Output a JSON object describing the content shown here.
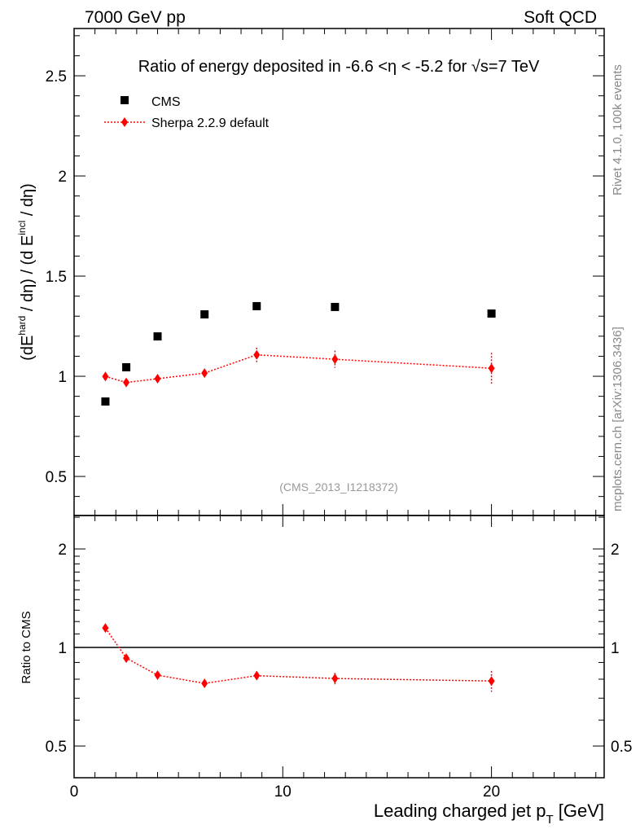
{
  "header": {
    "left": "7000 GeV pp",
    "right": "Soft QCD"
  },
  "side_labels": {
    "rivet": "Rivet 4.1.0,  100k events",
    "mcplots": "mcplots.cern.ch [arXiv:1306.3436]"
  },
  "colors": {
    "cms": "#000000",
    "sherpa": "#ff0000"
  },
  "chart_data": [
    {
      "type": "scatter",
      "title": "Ratio of energy deposited in -6.6 <η < -5.2 for √s=7 TeV",
      "ylabel_parts": {
        "open": "(dE",
        "sup1": "hard",
        "mid": " / dη) / (d E",
        "sup2": "incl",
        "close": " / dη)"
      },
      "watermark": "(CMS_2013_I1218372)",
      "xlim": [
        0,
        25.4
      ],
      "ylim": [
        0.305,
        2.736
      ],
      "yticks": [
        "0.5",
        "1",
        "1.5",
        "2",
        "2.5"
      ],
      "legend_placement": "top-left",
      "series": [
        {
          "name": "CMS",
          "marker": "square",
          "x": [
            1.5,
            2.5,
            4,
            6.25,
            8.75,
            12.5,
            20
          ],
          "y": [
            0.874,
            1.045,
            1.199,
            1.309,
            1.35,
            1.346,
            1.313
          ],
          "err": [
            0,
            0,
            0,
            0,
            0,
            0,
            0
          ]
        },
        {
          "name": "Sherpa 2.2.9 default",
          "marker": "diamond",
          "x": [
            1.5,
            2.5,
            4,
            6.25,
            8.75,
            12.5,
            20
          ],
          "y": [
            0.999,
            0.969,
            0.988,
            1.016,
            1.107,
            1.085,
            1.04
          ],
          "err": [
            0.01,
            0.012,
            0.012,
            0.014,
            0.036,
            0.043,
            0.077
          ]
        }
      ]
    },
    {
      "type": "line",
      "ylabel": "Ratio to CMS",
      "xlabel": "Leading charged jet p",
      "xlabel_sub": "T",
      "xlabel_unit": " [GeV]",
      "xticks": [
        "0",
        "10",
        "20"
      ],
      "xlim": [
        0,
        25.4
      ],
      "ylim": [
        0.4,
        2.53
      ],
      "yscale": "log",
      "yticks": [
        "0.5",
        "1",
        "2"
      ],
      "series": [
        {
          "name": "Sherpa 2.2.9 default / CMS",
          "x": [
            1.5,
            2.5,
            4,
            6.25,
            8.75,
            12.5,
            20
          ],
          "y": [
            1.147,
            0.928,
            0.823,
            0.777,
            0.82,
            0.804,
            0.79
          ],
          "err": [
            0.012,
            0.012,
            0.012,
            0.012,
            0.026,
            0.032,
            0.058
          ]
        }
      ]
    }
  ]
}
